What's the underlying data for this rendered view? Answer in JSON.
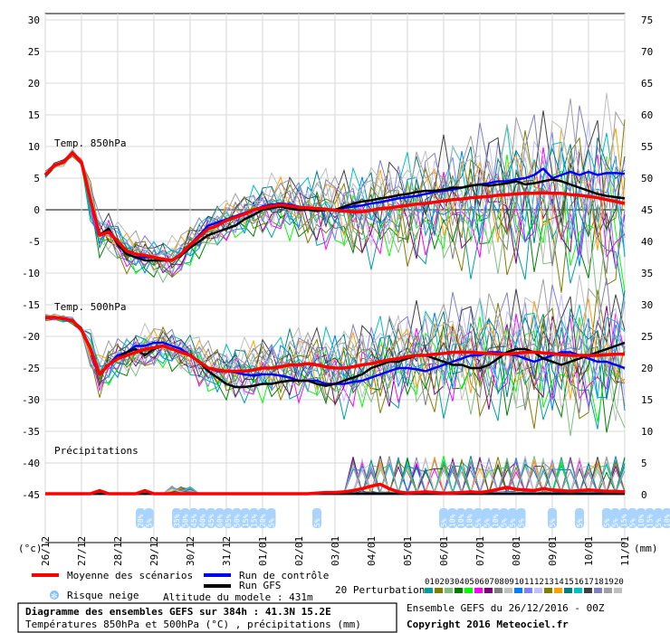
{
  "chart_data": {
    "type": "line",
    "left_axis_ticks": [
      "30",
      "25",
      "20",
      "15",
      "10",
      "5",
      "0",
      "-5",
      "-10",
      "-15",
      "-20",
      "-25",
      "-30",
      "-35",
      "-40",
      "-45"
    ],
    "right_axis_ticks": [
      "75",
      "70",
      "65",
      "60",
      "55",
      "50",
      "45",
      "40",
      "35",
      "30",
      "25",
      "20",
      "15",
      "10",
      "5",
      "0"
    ],
    "left_axis_unit": "(°c)",
    "right_axis_unit": "(mm)",
    "x_tick_labels": [
      "26/12",
      "27/12",
      "28/12",
      "29/12",
      "30/12",
      "31/12",
      "01/01",
      "02/01",
      "03/01",
      "04/01",
      "05/01",
      "06/01",
      "07/01",
      "08/01",
      "09/01",
      "10/01",
      "11/01"
    ],
    "panel_labels": [
      "Temp. 850hPa",
      "Temp. 500hPa",
      "Précipitations"
    ],
    "x_hours": [
      0,
      6,
      12,
      18,
      24,
      30,
      36,
      42,
      48,
      54,
      60,
      66,
      72,
      78,
      84,
      90,
      96,
      102,
      108,
      114,
      120,
      126,
      132,
      138,
      144,
      150,
      156,
      162,
      168,
      174,
      180,
      186,
      192,
      198,
      204,
      210,
      216,
      222,
      228,
      234,
      240,
      246,
      252,
      258,
      264,
      270,
      276,
      282,
      288,
      294,
      300,
      306,
      312,
      318,
      324,
      330,
      336,
      342,
      348,
      354,
      360,
      366,
      372,
      378,
      384
    ],
    "series": [
      {
        "name": "Moyenne des scénarios",
        "panel": "850hPa",
        "color": "#ff0000",
        "values": [
          5.5,
          7,
          7.5,
          9,
          7.5,
          1.5,
          -4,
          -3.5,
          -5,
          -6.5,
          -7,
          -7.2,
          -7.5,
          -7.8,
          -8,
          -7,
          -5.5,
          -4.3,
          -3,
          -2.5,
          -1.7,
          -1.2,
          -0.7,
          0,
          0.3,
          0.6,
          0.8,
          0.6,
          0.4,
          0.3,
          0.2,
          0.1,
          -0.1,
          -0.2,
          -0.3,
          -0.3,
          -0.1,
          0.2,
          0.3,
          0.5,
          0.7,
          0.9,
          1,
          1.2,
          1.4,
          1.6,
          1.7,
          1.9,
          2,
          2.1,
          2.3,
          2.4,
          2.5,
          2.6,
          2.6,
          2.7,
          2.6,
          2.6,
          2.4,
          2.3,
          2.1,
          1.9,
          1.6,
          1.3,
          1
        ]
      },
      {
        "name": "Run de contrôle",
        "panel": "850hPa",
        "color": "#0000ff",
        "values": [
          5.5,
          7,
          7.5,
          9,
          7.5,
          1.5,
          -4,
          -3,
          -5.5,
          -7,
          -7.5,
          -7.5,
          -7.5,
          -8,
          -8,
          -7,
          -5.5,
          -4,
          -2.5,
          -2,
          -1.5,
          -1,
          -0.5,
          0,
          0.5,
          0.8,
          1,
          0.8,
          0.5,
          0.2,
          0,
          0,
          0,
          0.3,
          0.5,
          0.7,
          1,
          1.2,
          1.5,
          1.8,
          2,
          2.2,
          2.5,
          2.8,
          3,
          3.2,
          3.5,
          3.8,
          4,
          4.2,
          4.5,
          4.5,
          4.8,
          5,
          5.5,
          6.5,
          5,
          5.5,
          6,
          5.5,
          6,
          5.5,
          5.8,
          5.8,
          5.7
        ]
      },
      {
        "name": "Run GFS",
        "panel": "850hPa",
        "color": "#000000",
        "values": [
          5.5,
          7,
          7.5,
          9,
          7.5,
          1.5,
          -4,
          -3,
          -5.5,
          -7,
          -7.5,
          -8,
          -8,
          -8,
          -8,
          -7.2,
          -6,
          -5,
          -4,
          -3.5,
          -3,
          -2.5,
          -1.5,
          -0.8,
          0,
          0.3,
          0.5,
          0.2,
          0,
          0,
          -0.2,
          0,
          0,
          0.5,
          1,
          1.3,
          1.5,
          1.8,
          2,
          2.3,
          2.5,
          2.8,
          3,
          3,
          3.2,
          3.5,
          3.5,
          3.8,
          4,
          3.8,
          4,
          4.2,
          4.5,
          4,
          4.2,
          4.5,
          4.8,
          4.5,
          4,
          3.5,
          3,
          2.5,
          2.2,
          2,
          1.8
        ]
      },
      {
        "name": "Moyenne des scénarios",
        "panel": "500hPa",
        "color": "#ff0000",
        "values": [
          -17,
          -17,
          -17.2,
          -17.5,
          -19,
          -22,
          -26,
          -24.5,
          -23.5,
          -23,
          -22.5,
          -22,
          -21.8,
          -21.5,
          -22,
          -22.5,
          -23,
          -24,
          -25,
          -25.3,
          -25.5,
          -25.5,
          -25.5,
          -25.3,
          -25,
          -25,
          -24.8,
          -24.5,
          -24.5,
          -24.3,
          -24.5,
          -24.8,
          -25,
          -25,
          -24.8,
          -24.5,
          -24.3,
          -24,
          -23.7,
          -23.5,
          -23.2,
          -23,
          -23,
          -22.8,
          -22.7,
          -22.5,
          -22.5,
          -22.5,
          -22.6,
          -22.7,
          -22.8,
          -22.8,
          -22.7,
          -22.5,
          -22.5,
          -22.6,
          -22.7,
          -22.9,
          -23,
          -23,
          -23,
          -23,
          -22.9,
          -22.8,
          -22.8
        ]
      },
      {
        "name": "Run de contrôle",
        "panel": "500hPa",
        "color": "#0000ff",
        "values": [
          -17,
          -17,
          -17.2,
          -17.5,
          -19,
          -22,
          -26,
          -24.5,
          -23,
          -22.5,
          -21.5,
          -21.5,
          -21,
          -21,
          -21.5,
          -22,
          -23,
          -24,
          -25,
          -25.5,
          -25.5,
          -25.7,
          -26,
          -26.2,
          -26,
          -26,
          -26.2,
          -26.5,
          -27,
          -27,
          -27,
          -27.5,
          -27.5,
          -27.5,
          -27.2,
          -27,
          -26.5,
          -26,
          -25.5,
          -25,
          -25,
          -25.2,
          -25.5,
          -25,
          -24.5,
          -24,
          -23.5,
          -23,
          -23,
          -22.5,
          -22.5,
          -22.8,
          -23,
          -23.5,
          -24,
          -23.5,
          -23,
          -22.5,
          -22.5,
          -23,
          -23.5,
          -24,
          -24,
          -24.5,
          -25
        ]
      },
      {
        "name": "Run GFS",
        "panel": "500hPa",
        "color": "#000000",
        "values": [
          -17,
          -17,
          -17.2,
          -17.5,
          -19,
          -22,
          -26,
          -24.5,
          -23.5,
          -22.5,
          -22,
          -23,
          -22,
          -21.5,
          -22,
          -22.5,
          -23,
          -24,
          -25.5,
          -26.5,
          -27.5,
          -28,
          -28,
          -27.8,
          -27.5,
          -27.5,
          -27.2,
          -27,
          -27,
          -27,
          -27.5,
          -27.8,
          -27.5,
          -27,
          -26.5,
          -26,
          -25,
          -24.5,
          -24,
          -24,
          -23.5,
          -23,
          -23,
          -23.5,
          -24,
          -24.5,
          -24.5,
          -25,
          -25,
          -24.5,
          -23.5,
          -22.5,
          -22,
          -22,
          -22.5,
          -23.5,
          -24,
          -24.5,
          -24,
          -23.5,
          -23,
          -22.5,
          -22,
          -21.5,
          -21
        ]
      },
      {
        "name": "Moyenne des scénarios",
        "panel": "precip",
        "color": "#ff0000",
        "values": [
          0,
          0,
          0,
          0,
          0,
          0,
          0.5,
          0,
          0,
          0,
          0,
          0.5,
          0,
          0,
          0,
          0,
          0,
          0,
          0,
          0,
          0,
          0,
          0,
          0,
          0,
          0,
          0,
          0,
          0,
          0,
          0.1,
          0.2,
          0.2,
          0.3,
          0.5,
          0.8,
          1.2,
          1.5,
          0.8,
          0.3,
          0.1,
          0.2,
          0.3,
          0.2,
          0.1,
          0.1,
          0.2,
          0.3,
          0.2,
          0.4,
          0.7,
          1,
          0.7,
          0.6,
          0.5,
          0.8,
          0.6,
          0.5,
          0.4,
          0.5,
          0.6,
          0.5,
          0.4,
          0.4,
          0.3
        ]
      },
      {
        "name": "Run de contrôle",
        "panel": "precip",
        "color": "#0000ff",
        "values": [
          0,
          0,
          0,
          0,
          0,
          0,
          0,
          0,
          0,
          0,
          0,
          0,
          0,
          0,
          0,
          0,
          0,
          0,
          0,
          0,
          0,
          0,
          0,
          0,
          0,
          0,
          0,
          0,
          0,
          0,
          0,
          0,
          0,
          0,
          0,
          0,
          0,
          0,
          0,
          0,
          0,
          0,
          0,
          0,
          0,
          0,
          0,
          0,
          0,
          0,
          0,
          0,
          0,
          0,
          0,
          0,
          0,
          0,
          0,
          0,
          0,
          0,
          0,
          0,
          0
        ]
      },
      {
        "name": "Run GFS",
        "panel": "precip",
        "color": "#000000",
        "values": [
          0,
          0,
          0,
          0,
          0,
          0,
          0,
          0,
          0,
          0,
          0,
          0,
          0,
          0,
          0,
          0,
          0,
          0,
          0,
          0,
          0,
          0,
          0,
          0,
          0,
          0,
          0,
          0,
          0,
          0,
          0,
          0,
          0,
          0,
          0,
          0,
          0,
          0,
          0,
          0,
          0,
          0,
          0,
          0,
          0,
          0,
          0,
          0,
          0,
          0,
          0,
          0,
          0,
          0,
          0,
          0,
          0,
          0,
          0,
          0,
          0,
          0,
          0,
          0,
          0
        ]
      }
    ],
    "snow_risk": [
      {
        "x_hour": 63,
        "labels": [
          "20%",
          "5%"
        ]
      },
      {
        "x_hour": 87,
        "labels": [
          "35%",
          "50%",
          "45%",
          "40%",
          "45%",
          "60%",
          "85%",
          "50%",
          "15%",
          "15%",
          "20%",
          "5%"
        ]
      },
      {
        "x_hour": 180,
        "labels": [
          "5%"
        ]
      },
      {
        "x_hour": 264,
        "labels": [
          "5%",
          "10%",
          "10%",
          "10%",
          "5%",
          "5%",
          "10%",
          "5%",
          "5%",
          "5%"
        ]
      },
      {
        "x_hour": 336,
        "labels": [
          "5%"
        ]
      },
      {
        "x_hour": 354,
        "labels": [
          "5%"
        ]
      },
      {
        "x_hour": 372,
        "labels": [
          "5%",
          "5%",
          "15%",
          "5%",
          "10%",
          "15%",
          "5%",
          "10%",
          "5%"
        ]
      }
    ],
    "legend": {
      "mean": "Moyenne des scénarios",
      "control": "Run de contrôle",
      "gfs": "Run GFS",
      "perturbations": "20 Perturbations",
      "perturbation_ids": [
        "01",
        "02",
        "03",
        "04",
        "05",
        "06",
        "07",
        "08",
        "09",
        "10",
        "11",
        "12",
        "13",
        "14",
        "15",
        "16",
        "17",
        "18",
        "19",
        "20"
      ],
      "perturbation_colors": [
        "#00a0a0",
        "#7f7f00",
        "#7fbf7f",
        "#008000",
        "#00ff00",
        "#ff00ff",
        "#7f007f",
        "#7f7f7f",
        "#c0c0c0",
        "#0080ff",
        "#8080ff",
        "#c0c0ff",
        "#808000",
        "#ffa000",
        "#008080",
        "#00c0c0",
        "#404040",
        "#8080c0",
        "#a0a0a0",
        "#bfbfbf"
      ],
      "snow": "Risque neige",
      "altitude": "Altitude du modele : 431m"
    },
    "footer": {
      "title": "Diagramme des ensembles GEFS sur 384h : 41.3N 15.2E",
      "subtitle": "Températures 850hPa et 500hPa (°C) , précipitations (mm)",
      "ensemble": "Ensemble GEFS du 26/12/2016 - 00Z",
      "copyright": "Copyright 2016 Meteociel.fr"
    }
  }
}
